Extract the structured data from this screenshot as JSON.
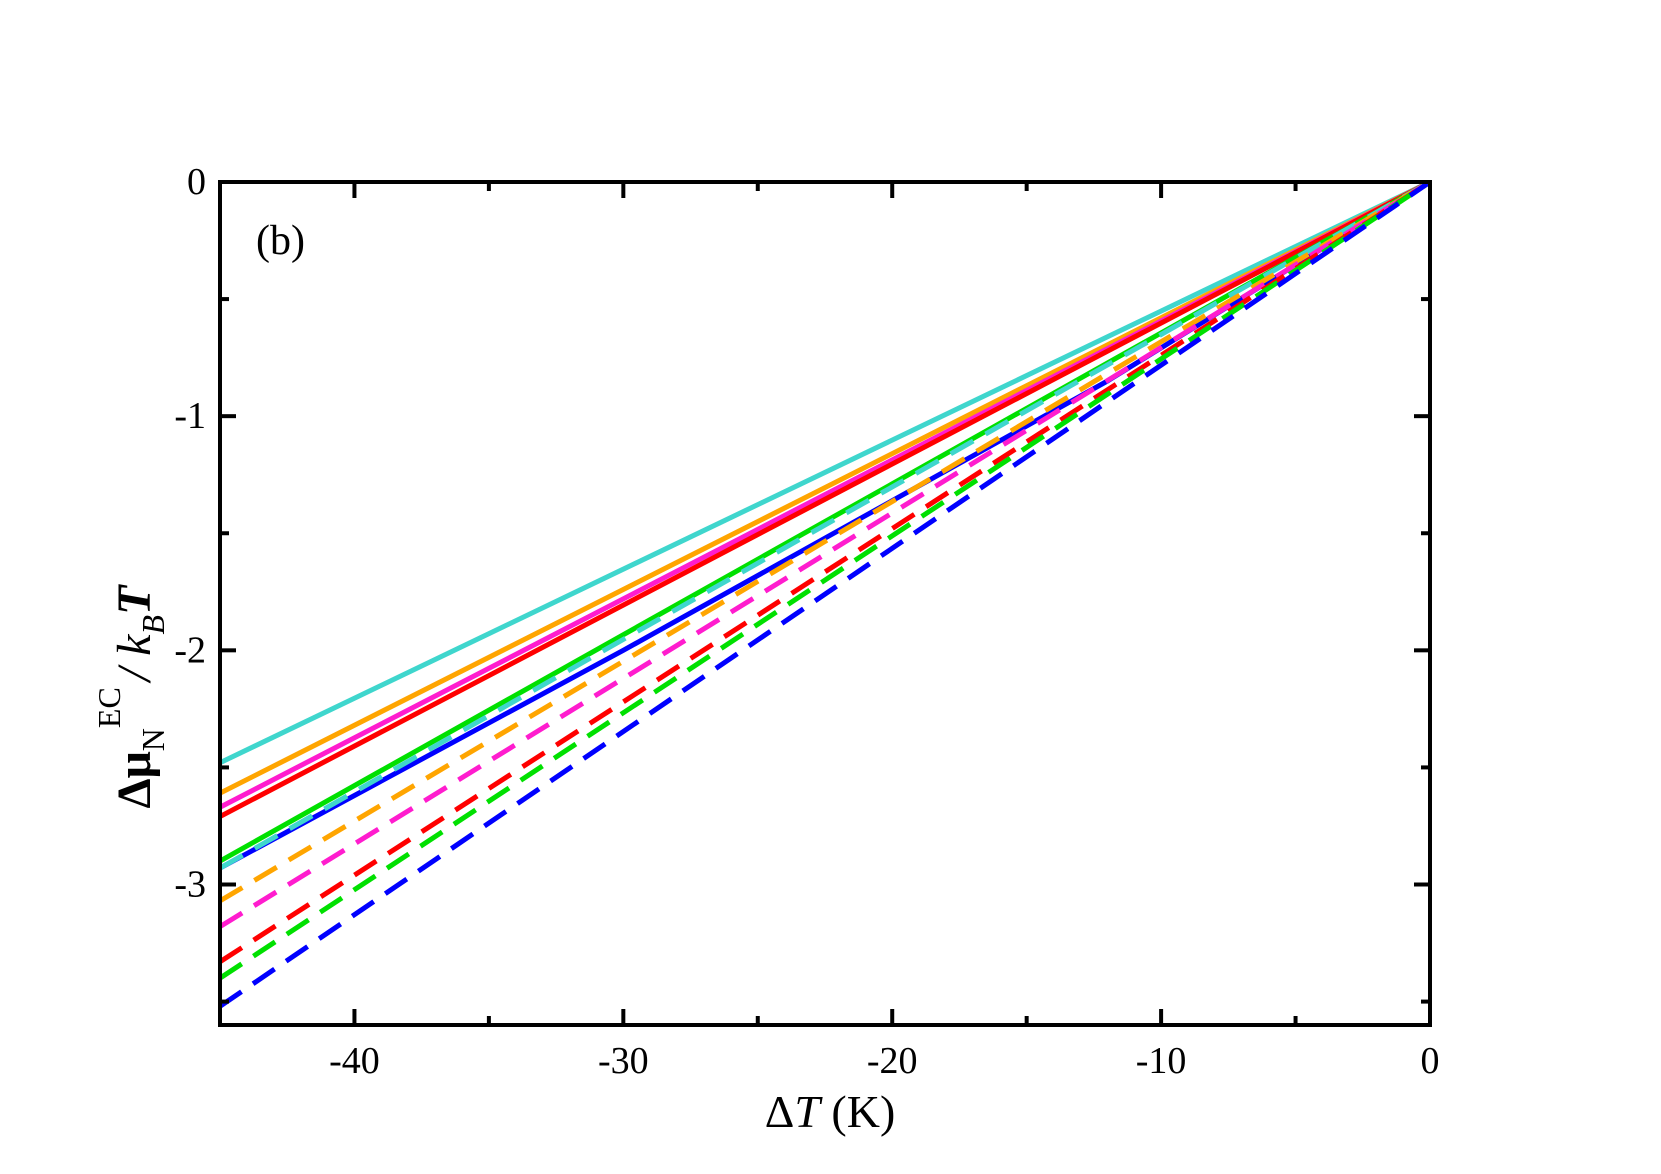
{
  "chart_data": {
    "type": "line",
    "panel_label": "(b)",
    "xlabel": {
      "prefix": "Δ",
      "italic": "T",
      "suffix": " (K)"
    },
    "ylabel": {
      "prefix": "Δμ",
      "sub": "N",
      "sup": "EC",
      "mid": "/ k",
      "sub2": "B",
      "italic": "T"
    },
    "xlim": [
      -45,
      0
    ],
    "ylim": [
      -3.6,
      0
    ],
    "x_ticks": [
      -40,
      -30,
      -20,
      -10,
      0
    ],
    "x_tick_labels": [
      "-40",
      "-30",
      "-20",
      "-10",
      "0"
    ],
    "x_minor_ticks": [
      -45,
      -35,
      -25,
      -15,
      -5
    ],
    "y_ticks": [
      -3,
      -2,
      -1,
      0
    ],
    "y_tick_labels": [
      "-3",
      "-2",
      "-1",
      "0"
    ],
    "y_minor_ticks": [
      -3.5,
      -2.5,
      -1.5,
      -0.5
    ],
    "grid": false,
    "legend": "none",
    "series": [
      {
        "color": "#3fd6cd",
        "dash": "solid",
        "x": [
          -45,
          0
        ],
        "y": [
          -2.48,
          0
        ]
      },
      {
        "color": "#ffa500",
        "dash": "solid",
        "x": [
          -45,
          0
        ],
        "y": [
          -2.61,
          0
        ]
      },
      {
        "color": "#ff1cce",
        "dash": "solid",
        "x": [
          -45,
          0
        ],
        "y": [
          -2.67,
          0
        ]
      },
      {
        "color": "#ff0000",
        "dash": "solid",
        "x": [
          -45,
          0
        ],
        "y": [
          -2.71,
          0
        ]
      },
      {
        "color": "#00e000",
        "dash": "solid",
        "x": [
          -45,
          0
        ],
        "y": [
          -2.9,
          0
        ]
      },
      {
        "color": "#0000ff",
        "dash": "solid",
        "x": [
          -45,
          -30,
          -12,
          0
        ],
        "y": [
          -2.93,
          -2.0,
          -0.85,
          0
        ]
      },
      {
        "color": "#3fd6cd",
        "dash": "dashed",
        "x": [
          -45,
          0
        ],
        "y": [
          -2.93,
          0
        ]
      },
      {
        "color": "#ffa500",
        "dash": "dashed",
        "x": [
          -45,
          0
        ],
        "y": [
          -3.07,
          0
        ]
      },
      {
        "color": "#ff1cce",
        "dash": "dashed",
        "x": [
          -45,
          0
        ],
        "y": [
          -3.18,
          0
        ]
      },
      {
        "color": "#ff0000",
        "dash": "dashed",
        "x": [
          -45,
          0
        ],
        "y": [
          -3.33,
          0
        ]
      },
      {
        "color": "#00e000",
        "dash": "dashed",
        "x": [
          -45,
          0
        ],
        "y": [
          -3.4,
          0
        ]
      },
      {
        "color": "#0000ff",
        "dash": "dashed",
        "x": [
          -45,
          0
        ],
        "y": [
          -3.52,
          0
        ]
      }
    ]
  }
}
